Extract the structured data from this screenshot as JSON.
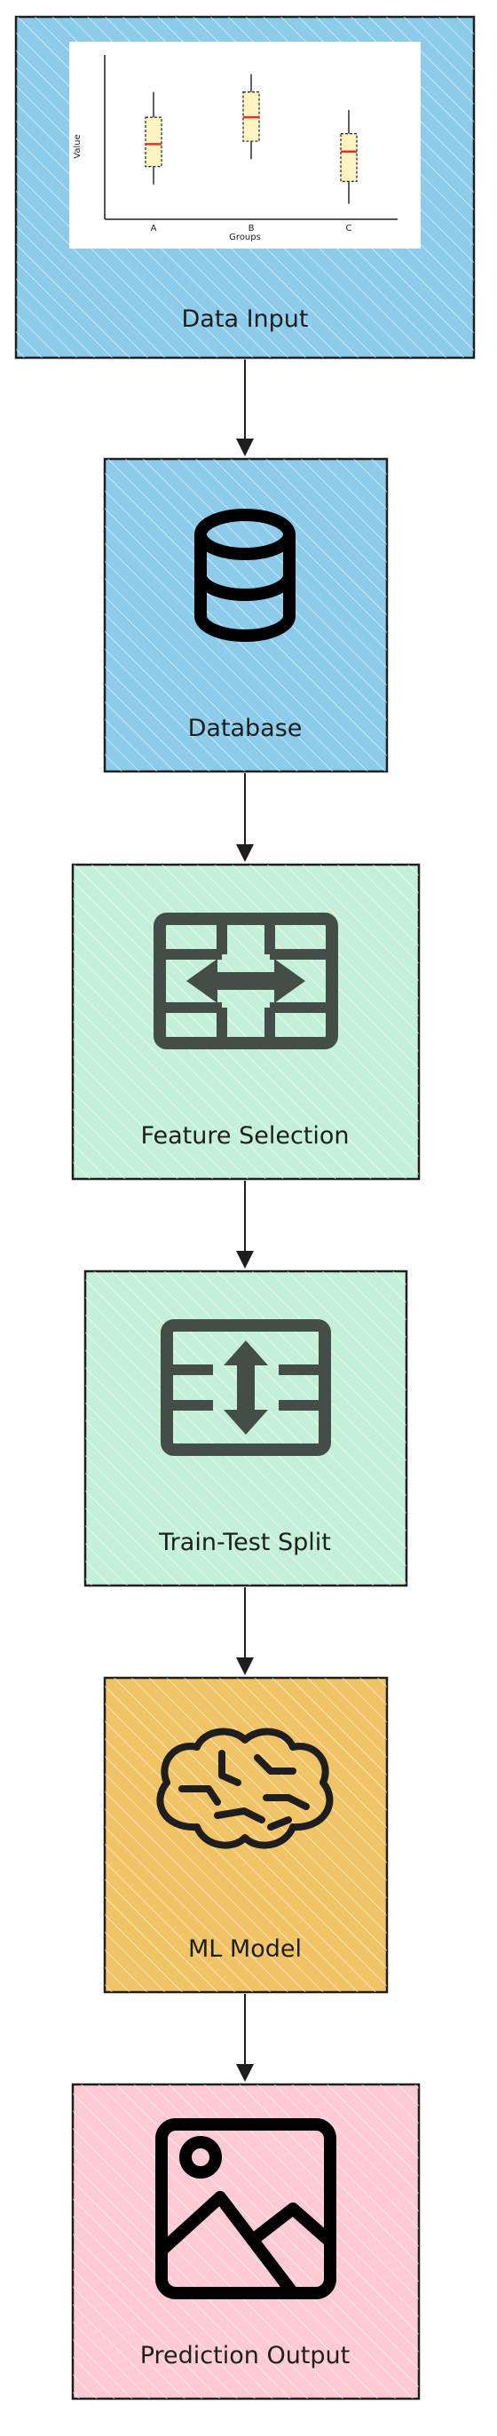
{
  "nodes": [
    {
      "label": "Data Input",
      "fill": "#8dcbea"
    },
    {
      "label": "Database",
      "fill": "#8dcbea"
    },
    {
      "label": "Feature Selection",
      "fill": "#c3f0d6"
    },
    {
      "label": "Train-Test Split",
      "fill": "#c3f0d6"
    },
    {
      "label": "ML Model",
      "fill": "#f0c466"
    },
    {
      "label": "Prediction Output",
      "fill": "#ffcbd3"
    }
  ],
  "icons": [
    "boxplot-chart",
    "database-icon",
    "transfer-horizontal-icon",
    "transfer-vertical-icon",
    "brain-circuit-icon",
    "image-icon"
  ],
  "edges": [
    "arrow-1-2",
    "arrow-2-3",
    "arrow-3-4",
    "arrow-4-5",
    "arrow-5-6"
  ],
  "chart_data": {
    "type": "boxplot",
    "title": "",
    "xlabel": "Groups",
    "ylabel": "Value",
    "categories": [
      "A",
      "B",
      "C"
    ],
    "boxes": [
      {
        "category": "A",
        "min": 0.18,
        "q1": 0.3,
        "median": 0.45,
        "q3": 0.63,
        "max": 0.8
      },
      {
        "category": "B",
        "min": 0.35,
        "q1": 0.47,
        "median": 0.63,
        "q3": 0.8,
        "max": 0.92
      },
      {
        "category": "C",
        "min": 0.05,
        "q1": 0.2,
        "median": 0.4,
        "q3": 0.52,
        "max": 0.68
      }
    ],
    "ylim": [
      0,
      1
    ],
    "median_color": "#e03131",
    "box_fill": "#fff3bf",
    "grid": false,
    "legend": "none"
  }
}
